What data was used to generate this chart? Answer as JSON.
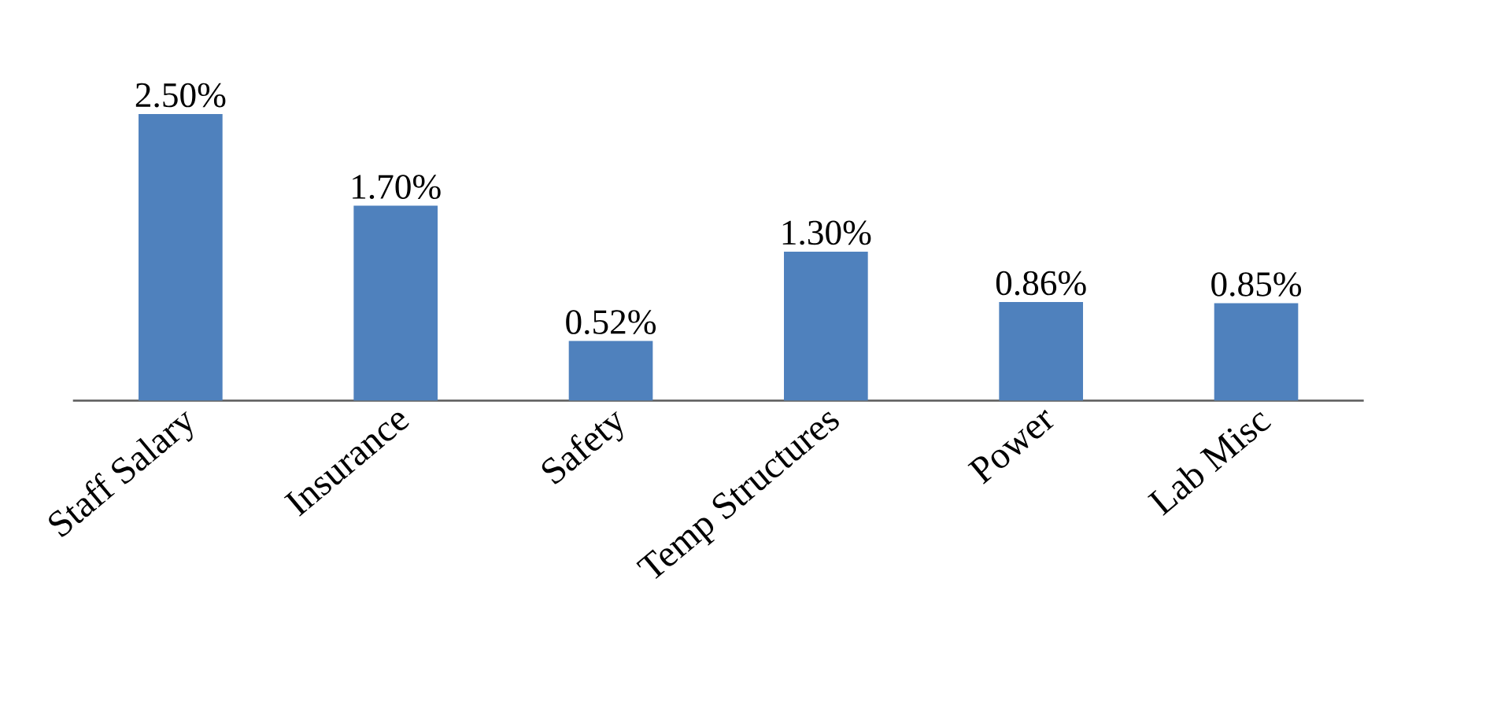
{
  "chart_data": {
    "type": "bar",
    "categories": [
      "Staff Salary",
      "Insurance",
      "Safety",
      "Temp Structures",
      "Power",
      "Lab Misc"
    ],
    "values": [
      2.5,
      1.7,
      0.52,
      1.3,
      0.86,
      0.85
    ],
    "value_labels": [
      "2.50%",
      "1.70%",
      "0.52%",
      "1.30%",
      "0.86%",
      "0.85%"
    ],
    "color": "#4f81bd",
    "tick_labels": "x"
  }
}
